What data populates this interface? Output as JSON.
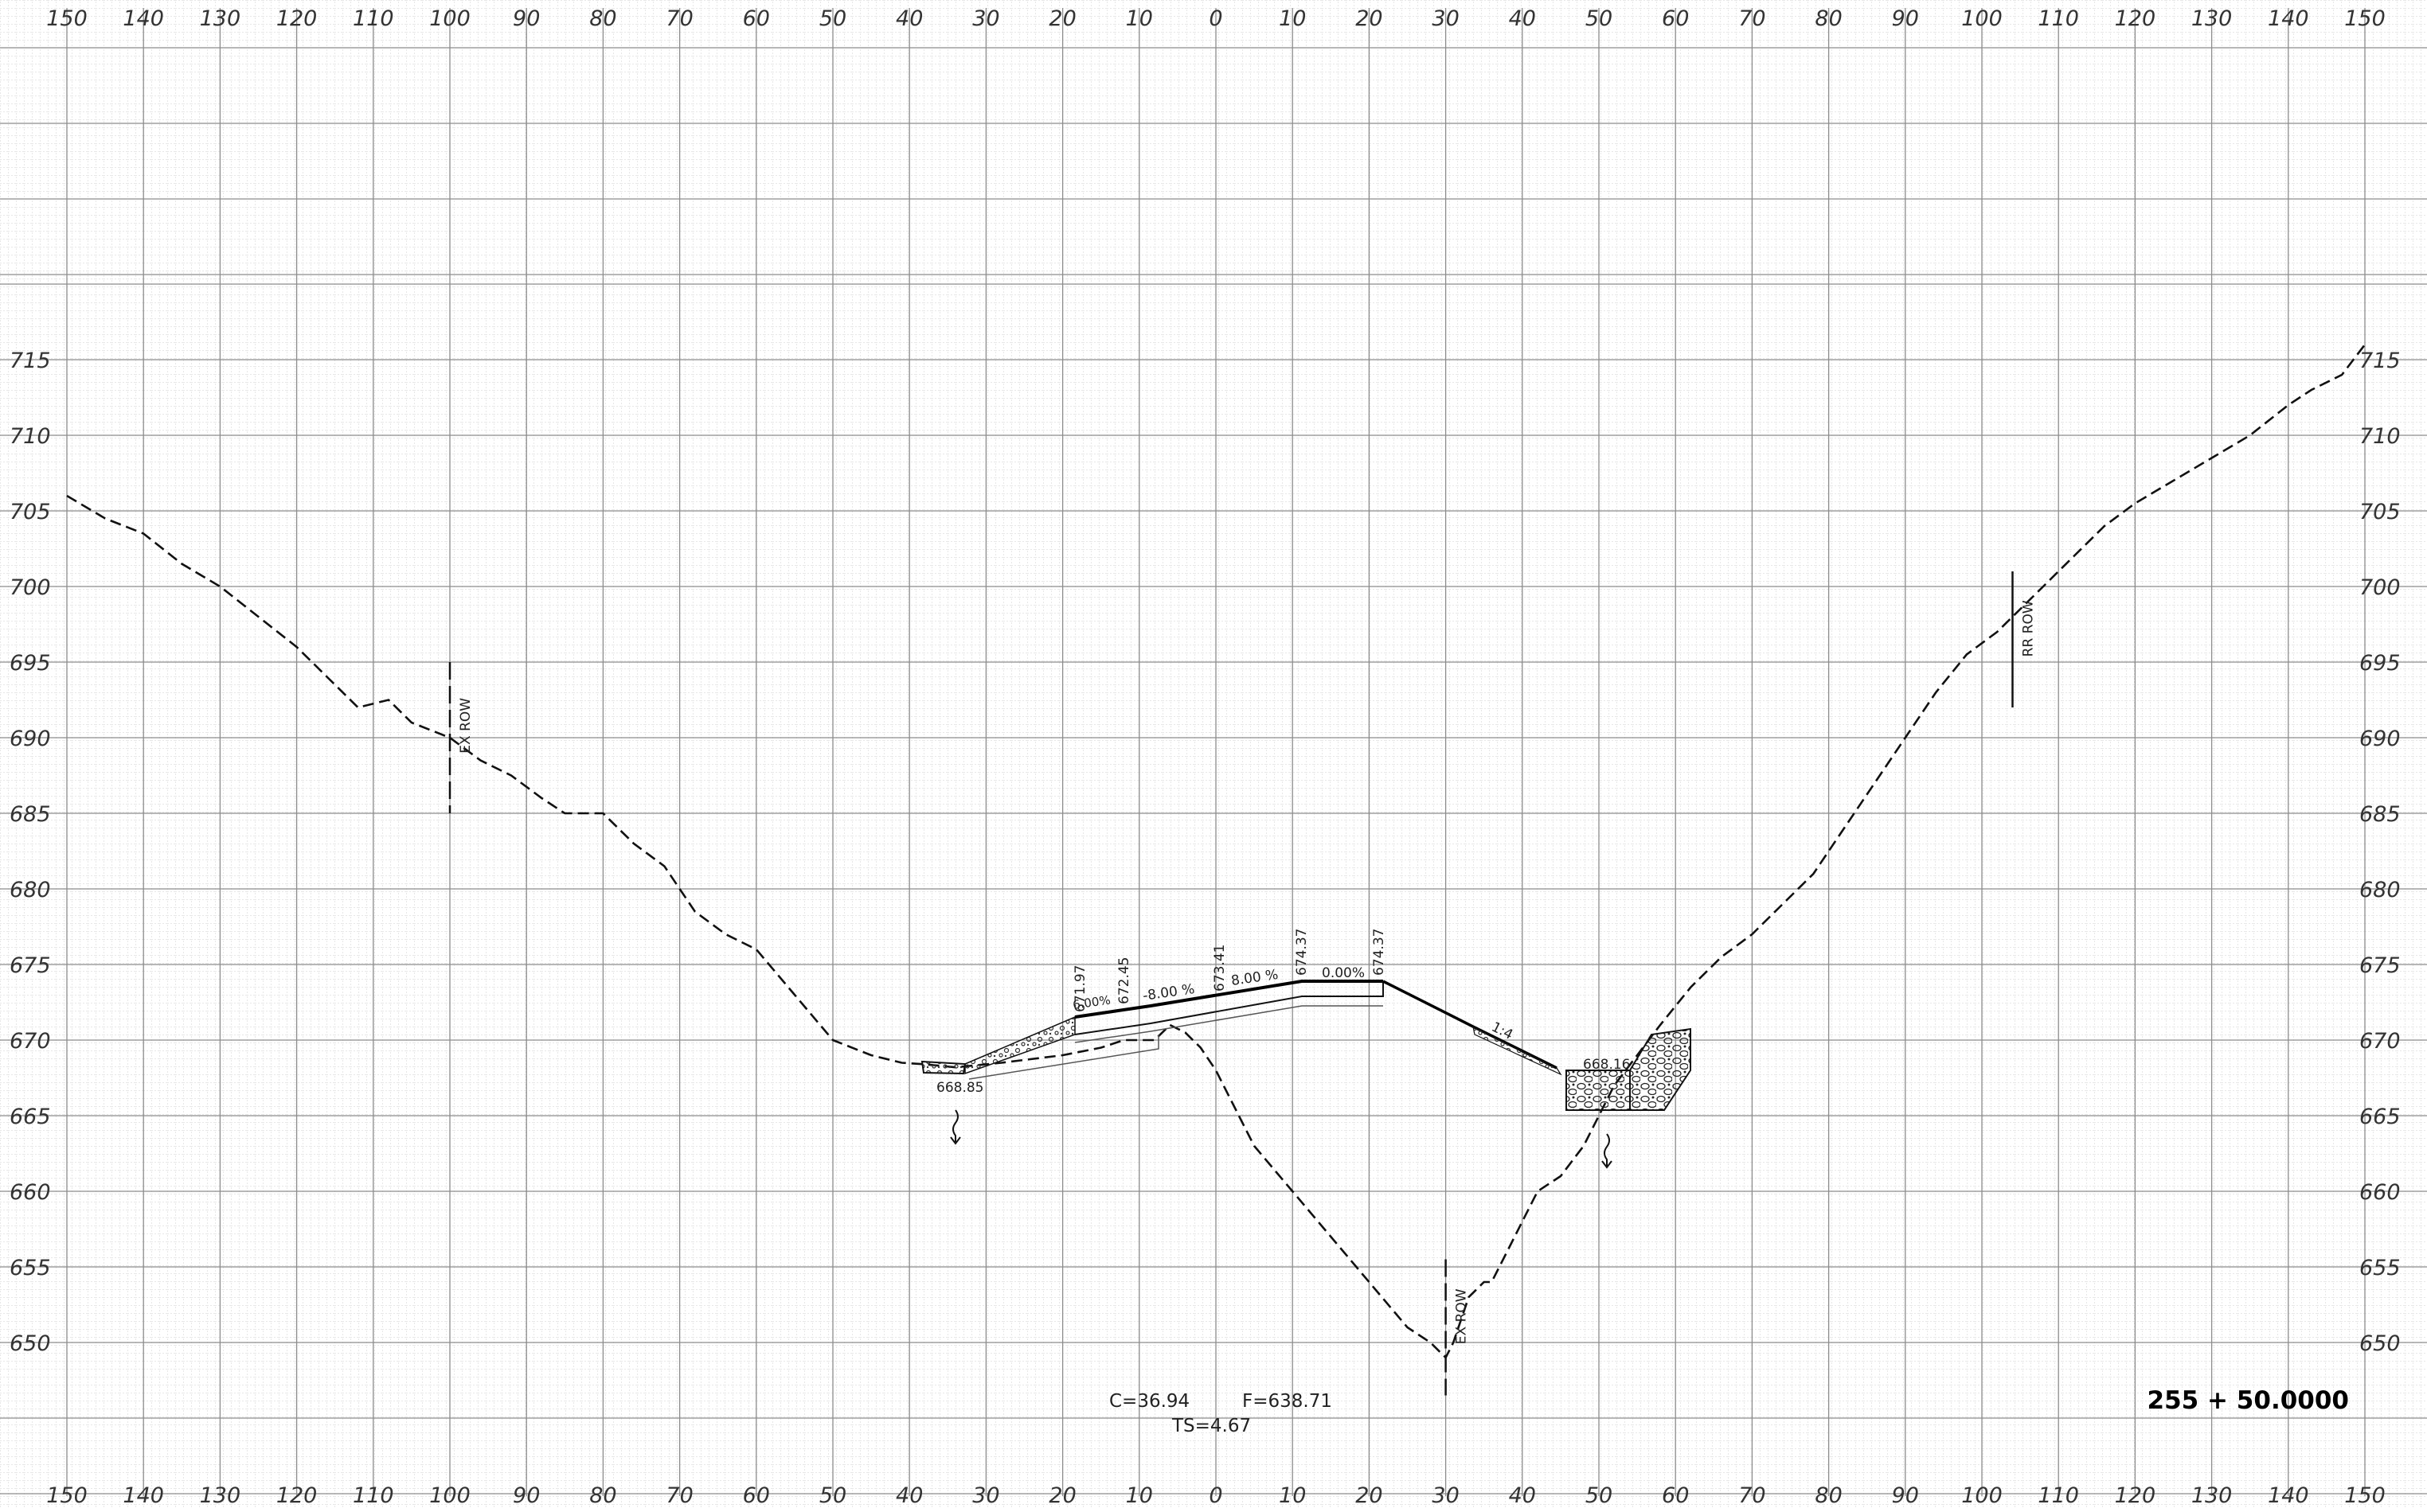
{
  "sheet": {
    "station_label": "255 + 50.0000",
    "x_tick_labels": [
      "150",
      "140",
      "130",
      "120",
      "110",
      "100",
      "90",
      "80",
      "70",
      "60",
      "50",
      "40",
      "30",
      "20",
      "10",
      "0",
      "10",
      "20",
      "30",
      "40",
      "50",
      "60",
      "70",
      "80",
      "90",
      "100",
      "110",
      "120",
      "130",
      "140",
      "150"
    ],
    "elevation_labels": [
      "715",
      "710",
      "705",
      "700",
      "695",
      "690",
      "685",
      "680",
      "675",
      "670",
      "665",
      "660",
      "655",
      "650"
    ],
    "row_markers": {
      "ex_left": "EX ROW",
      "ex_center": "EX ROW",
      "rr": "RR ROW"
    },
    "quantities": {
      "cut": "C=36.94",
      "fill": "F=638.71",
      "topsoil": "TS=4.67"
    },
    "annotations": {
      "elev_671_97": "671.97",
      "elev_672_45": "672.45",
      "elev_673_41": "673.41",
      "elev_674_37_a": "674.37",
      "elev_674_37_b": "674.37",
      "slope_6_00": "6.00%",
      "slope_neg_8_00": "-8.00 %",
      "slope_8_00": "8.00 %",
      "slope_0_00": "0.00%",
      "side_slope": "1:4",
      "ditch_left_elev": "668.85",
      "ditch_right_elev": "668.16"
    }
  },
  "chart_data": {
    "type": "line",
    "title": "",
    "xlabel": "",
    "ylabel": "",
    "x_ticks": [
      -150,
      -140,
      -130,
      -120,
      -110,
      -100,
      -90,
      -80,
      -70,
      -60,
      -50,
      -40,
      -30,
      -20,
      -10,
      0,
      10,
      20,
      30,
      40,
      50,
      60,
      70,
      80,
      90,
      100,
      110,
      120,
      130,
      140,
      150
    ],
    "xlim": [
      -150,
      150
    ],
    "y_ticks": [
      650,
      655,
      660,
      665,
      670,
      675,
      680,
      685,
      690,
      695,
      700,
      705,
      710,
      715
    ],
    "ylim": [
      645,
      718
    ],
    "grid": true,
    "series": [
      {
        "key": "existing_ground",
        "style": "dashed",
        "x": [
          -150,
          -145,
          -140,
          -135,
          -130,
          -125,
          -120,
          -116,
          -112,
          -108,
          -105,
          -100,
          -96,
          -92,
          -88,
          -85,
          -80,
          -76,
          -72,
          -68,
          -64,
          -60,
          -55,
          -50,
          -45,
          -41,
          -38,
          -34,
          -28,
          -20,
          -15,
          -12,
          -8,
          -6,
          -4,
          -2,
          0,
          2,
          5,
          10,
          15,
          20,
          25,
          28,
          30,
          31,
          33,
          35,
          36,
          38,
          40,
          42,
          45,
          48,
          50,
          52,
          55,
          58,
          62,
          66,
          70,
          74,
          78,
          82,
          86,
          90,
          94,
          98,
          102,
          105,
          108,
          112,
          116,
          120,
          125,
          130,
          135,
          140,
          143,
          147,
          150
        ],
        "y": [
          706,
          704.5,
          703.5,
          701.5,
          700,
          698,
          696,
          694,
          692,
          692.5,
          691,
          690,
          688.5,
          687.5,
          686,
          685,
          685,
          683,
          681.5,
          678.5,
          677,
          676,
          673,
          670,
          669,
          668.5,
          668.4,
          668.2,
          668.5,
          669,
          669.5,
          670,
          670,
          671,
          670.5,
          669.5,
          668,
          666,
          663,
          660,
          657,
          654,
          651,
          650,
          649,
          650,
          653,
          654,
          654,
          656,
          658,
          660,
          661,
          663,
          665,
          667,
          669,
          671,
          673.5,
          675.5,
          677,
          679,
          681,
          684,
          687,
          690,
          693,
          695.5,
          697,
          698.5,
          700,
          702,
          704,
          705.5,
          707,
          708.5,
          710,
          712,
          713,
          714,
          716
        ]
      },
      {
        "key": "proposed_section",
        "style": "solid",
        "x": [
          -38,
          -34,
          -20,
          -10,
          0,
          12,
          22,
          33,
          44,
          58,
          63,
          65
        ],
        "y": [
          668.85,
          668.2,
          671.97,
          672.45,
          673.41,
          674.37,
          674.37,
          670.3,
          668.16,
          668.16,
          670.5,
          671
        ]
      }
    ],
    "markers": [
      {
        "label_key": "ex_left",
        "x": -100,
        "y_range": [
          685,
          695
        ]
      },
      {
        "label_key": "ex_center",
        "x": 30,
        "y_range": [
          646.5,
          655.5
        ]
      },
      {
        "label_key": "rr",
        "x": 104,
        "y_range": [
          692,
          701
        ]
      }
    ]
  }
}
